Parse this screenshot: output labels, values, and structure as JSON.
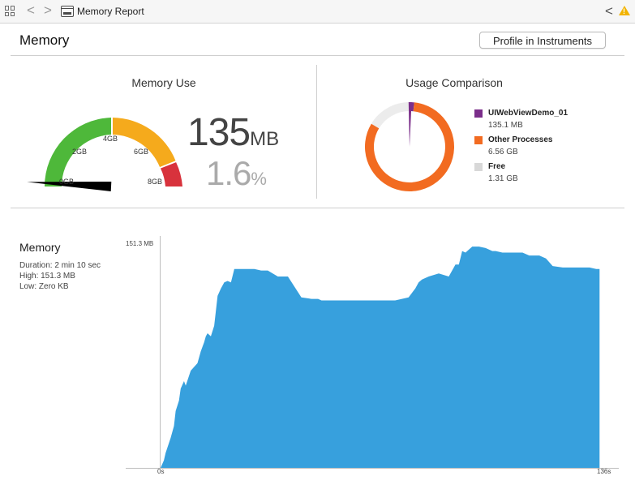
{
  "toolbar": {
    "breadcrumb": "Memory Report",
    "back_glyph": "<",
    "forward_glyph": ">",
    "related_glyph": "<",
    "warning_glyph": "!"
  },
  "header": {
    "title": "Memory",
    "profile_button": "Profile in Instruments"
  },
  "memory_use": {
    "title": "Memory Use",
    "value": "135",
    "value_unit": "MB",
    "percent": "1.6",
    "percent_unit": "%",
    "gauge_labels": [
      "0GB",
      "2GB",
      "4GB",
      "6GB",
      "8GB"
    ],
    "gauge_level": 0.017,
    "gauge_colors": [
      "#4eb83a",
      "#f5aa1c",
      "#d8323c"
    ]
  },
  "usage_comparison": {
    "title": "Usage Comparison",
    "legend": [
      {
        "name": "UIWebViewDemo_01",
        "value": "135.1 MB",
        "color": "#7b2e8a",
        "gb": 0.135
      },
      {
        "name": "Other Processes",
        "value": "6.56 GB",
        "color": "#f26b21",
        "gb": 6.56
      },
      {
        "name": "Free",
        "value": "1.31 GB",
        "color": "#d8d8d8",
        "gb": 1.31
      }
    ],
    "ring_free_color": "#ececec"
  },
  "chart": {
    "title": "Memory",
    "duration": "Duration: 2 min 10 sec",
    "high": "High: 151.3 MB",
    "low": "Low: Zero KB"
  },
  "chart_data": {
    "type": "area",
    "title": "",
    "xlabel": "",
    "ylabel": "",
    "y_max_label": "151.3 MB",
    "x_start_label": "0s",
    "x_end_label": "136s",
    "xlim": [
      0,
      136
    ],
    "ylim": [
      0,
      151.3
    ],
    "color": "#37a0dd",
    "x": [
      0,
      1,
      1.5,
      3,
      4,
      4.5,
      5.5,
      6,
      7,
      7.5,
      9,
      11,
      12,
      13,
      13.5,
      14,
      15,
      16,
      17,
      18,
      19,
      20,
      21,
      22,
      23,
      25,
      27,
      28,
      30,
      32,
      35,
      38,
      42,
      45,
      47,
      48,
      50,
      52,
      55,
      60,
      65,
      70,
      74,
      76,
      77,
      78,
      80,
      83,
      86,
      88,
      89,
      90,
      91,
      93,
      95,
      97,
      99,
      100,
      102,
      104,
      106,
      108,
      110,
      113,
      115,
      117,
      120,
      124,
      128,
      130,
      131
    ],
    "y": [
      0,
      5,
      10,
      20,
      28,
      38,
      45,
      53,
      58,
      55,
      65,
      70,
      78,
      84,
      88,
      90,
      88,
      95,
      115,
      120,
      124,
      125,
      124,
      133,
      133,
      133,
      133,
      133,
      132,
      132,
      128,
      128,
      114,
      113,
      113,
      112,
      112,
      112,
      112,
      112,
      112,
      112,
      114,
      120,
      124,
      126,
      128,
      130,
      128,
      136,
      136,
      145,
      144,
      148,
      148,
      147,
      145,
      145,
      144,
      144,
      144,
      144,
      142,
      142,
      140,
      135,
      134,
      134,
      134,
      133,
      133
    ]
  }
}
